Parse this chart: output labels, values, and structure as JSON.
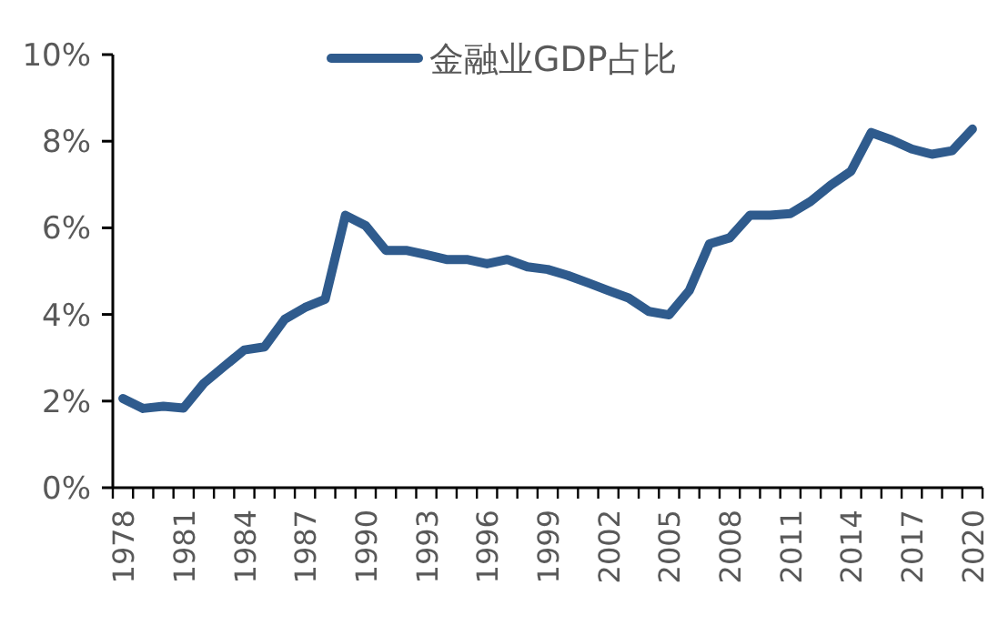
{
  "chart_data": {
    "type": "line",
    "categories": [
      "1978",
      null,
      null,
      "1981",
      null,
      null,
      "1984",
      null,
      null,
      "1987",
      null,
      null,
      "1990",
      null,
      null,
      "1993",
      null,
      null,
      "1996",
      null,
      null,
      "1999",
      null,
      null,
      "2002",
      null,
      null,
      "2005",
      null,
      null,
      "2008",
      null,
      null,
      "2011",
      null,
      null,
      "2014",
      null,
      null,
      "2017",
      null,
      null,
      "2020"
    ],
    "series": [
      {
        "name": "金融业GDP占比",
        "color": "#2f5b8d",
        "values": [
          2.06,
          1.83,
          1.88,
          1.84,
          2.41,
          2.8,
          3.18,
          3.25,
          3.89,
          4.16,
          4.35,
          6.29,
          6.05,
          5.48,
          5.48,
          5.38,
          5.27,
          5.27,
          5.17,
          5.27,
          5.1,
          5.04,
          4.9,
          4.73,
          4.55,
          4.38,
          4.07,
          3.99,
          4.55,
          5.63,
          5.77,
          6.29,
          6.29,
          6.33,
          6.61,
          6.99,
          7.31,
          8.2,
          8.03,
          7.82,
          7.7,
          7.78,
          8.28
        ]
      }
    ],
    "ylim": [
      0,
      10
    ],
    "yticks": [
      {
        "value": 0,
        "label": "0%"
      },
      {
        "value": 2,
        "label": "2%"
      },
      {
        "value": 4,
        "label": "4%"
      },
      {
        "value": 6,
        "label": "6%"
      },
      {
        "value": 8,
        "label": "8%"
      },
      {
        "value": 10,
        "label": "10%"
      }
    ],
    "legend": "top",
    "grid": false,
    "marker": "none",
    "line_style": "solid"
  }
}
